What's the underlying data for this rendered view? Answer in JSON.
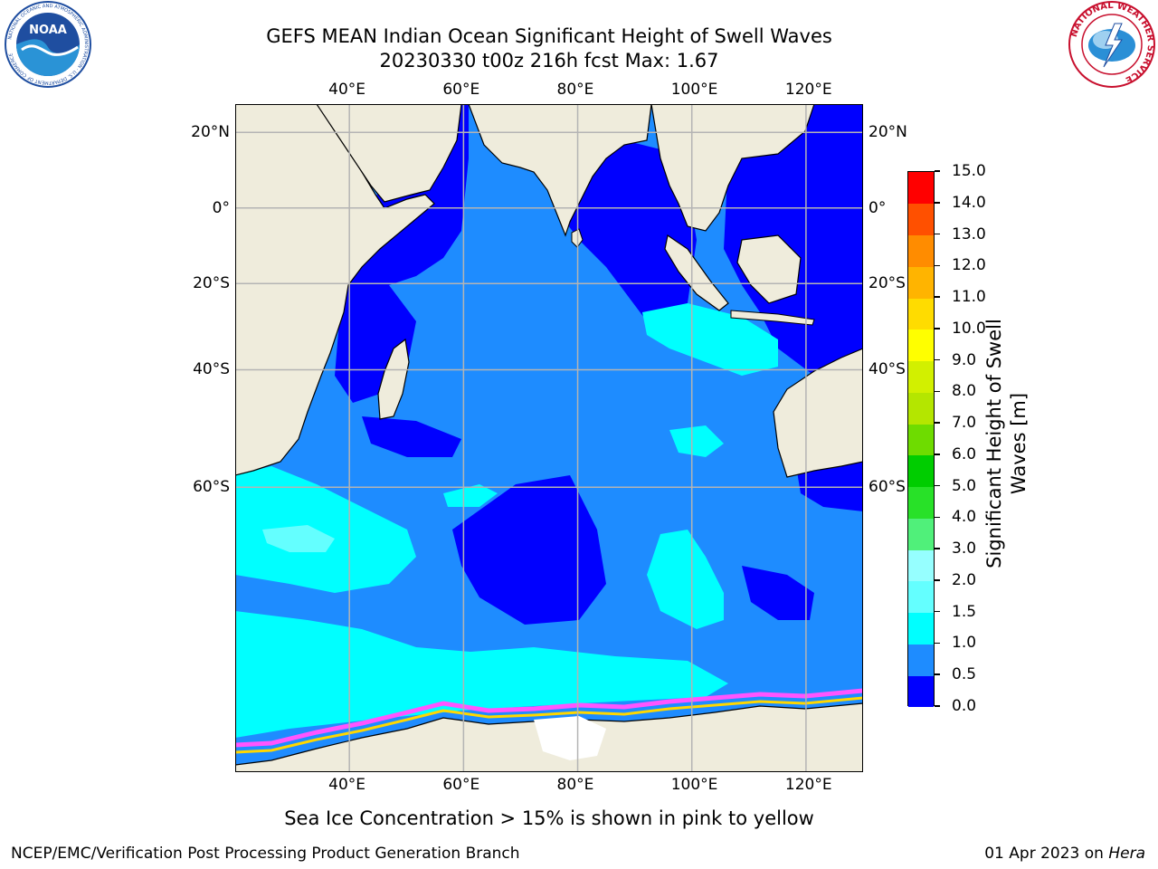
{
  "header": {
    "title_line1": "GEFS MEAN Indian Ocean Significant Height of Swell Waves",
    "title_line2": "20230330 t00z 216h fcst   Max: 1.67"
  },
  "logos": {
    "noaa_text": "NOAA",
    "noaa_ring_text": "NATIONAL OCEANIC AND ATMOSPHERIC ADMINISTRATION · U.S. DEPARTMENT OF COMMERCE",
    "nws_ring_text": "NATIONAL WEATHER SERVICE"
  },
  "map": {
    "lon_range": [
      20,
      130
    ],
    "lat_range": [
      -82,
      27
    ],
    "lon_ticks": [
      {
        "value": 40,
        "label": "40°E"
      },
      {
        "value": 60,
        "label": "60°E"
      },
      {
        "value": 80,
        "label": "80°E"
      },
      {
        "value": 100,
        "label": "100°E"
      },
      {
        "value": 120,
        "label": "120°E"
      }
    ],
    "lat_ticks": [
      {
        "value": 20,
        "label": "20°N"
      },
      {
        "value": 0,
        "label": "0°"
      },
      {
        "value": -20,
        "label": "20°S"
      },
      {
        "value": -40,
        "label": "40°S"
      },
      {
        "value": -60,
        "label": "60°S"
      }
    ],
    "colors": {
      "land": "#efecdc",
      "ice_free": "#ffffff",
      "deep_blue": "#0000ff",
      "mid_blue": "#1e8cff",
      "cyan": "#00ffff",
      "light_cyan": "#5fffff",
      "ice_pink": "#ff55ff",
      "ice_yellow": "#ffd700",
      "grid": "#b4b4b4",
      "coast": "#000000"
    }
  },
  "colorbar": {
    "label": "Significant Height of Swell Waves [m]",
    "levels": [
      0.0,
      0.5,
      1.0,
      1.5,
      2.0,
      3.0,
      4.0,
      5.0,
      6.0,
      7.0,
      8.0,
      9.0,
      10.0,
      11.0,
      12.0,
      13.0,
      14.0,
      15.0
    ],
    "tick_labels": [
      "0.0",
      "0.5",
      "1.0",
      "1.5",
      "2.0",
      "3.0",
      "4.0",
      "5.0",
      "6.0",
      "7.0",
      "8.0",
      "9.0",
      "10.0",
      "11.0",
      "12.0",
      "13.0",
      "14.0",
      "15.0"
    ],
    "colors": [
      "#0000ff",
      "#1e8cff",
      "#00ffff",
      "#64ffff",
      "#96ffff",
      "#50f07a",
      "#28e128",
      "#00cd00",
      "#6edc00",
      "#b4e600",
      "#d2f000",
      "#ffff00",
      "#ffdc00",
      "#ffb400",
      "#ff8c00",
      "#ff5000",
      "#ff0000"
    ]
  },
  "note": "Sea Ice Concentration > 15% is shown in pink to yellow",
  "footer": {
    "left": "NCEP/EMC/Verification Post Processing Product Generation Branch",
    "right_date": "01 Apr 2023 on ",
    "right_host": "Hera"
  }
}
